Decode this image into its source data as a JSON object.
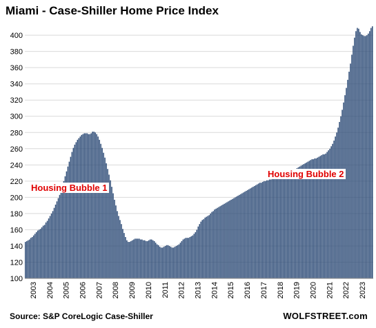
{
  "chart_data": {
    "type": "bar",
    "title": "Miami - Case-Shiller Home Price Index",
    "xlabel": "",
    "ylabel": "",
    "ylim": [
      100,
      412
    ],
    "yticks": [
      100,
      120,
      140,
      160,
      180,
      200,
      220,
      240,
      260,
      280,
      300,
      320,
      340,
      360,
      380,
      400
    ],
    "xtick_labels": [
      "2003",
      "2004",
      "2005",
      "2006",
      "2007",
      "2008",
      "2009",
      "2010",
      "2011",
      "2012",
      "2013",
      "2014",
      "2015",
      "2016",
      "2017",
      "2018",
      "2019",
      "2020",
      "2021",
      "2022",
      "2023"
    ],
    "grid": "horizontal",
    "bar_color": "#2e4c77",
    "annotation_color": "#e00000",
    "start": "2003-01",
    "frequency": "monthly",
    "annotations": [
      {
        "text": "Housing Bubble 1"
      },
      {
        "text": "Housing Bubble 2"
      }
    ],
    "values": [
      145,
      146,
      147,
      148,
      150,
      151,
      153,
      155,
      157,
      159,
      160,
      161,
      163,
      165,
      166,
      169,
      171,
      174,
      177,
      180,
      183,
      187,
      191,
      195,
      199,
      203,
      208,
      214,
      220,
      226,
      232,
      238,
      244,
      250,
      256,
      261,
      265,
      268,
      271,
      273,
      275,
      277,
      278,
      279,
      279,
      279,
      278,
      278,
      279,
      281,
      281,
      280,
      278,
      275,
      271,
      266,
      261,
      255,
      249,
      242,
      235,
      228,
      221,
      213,
      205,
      197,
      190,
      183,
      177,
      172,
      167,
      161,
      156,
      151,
      147,
      145,
      145,
      146,
      147,
      148,
      149,
      149,
      149,
      149,
      148,
      148,
      147,
      147,
      146,
      146,
      147,
      148,
      148,
      147,
      146,
      144,
      142,
      141,
      139,
      138,
      138,
      139,
      140,
      141,
      141,
      140,
      139,
      138,
      138,
      139,
      140,
      141,
      142,
      144,
      146,
      148,
      149,
      150,
      150,
      150,
      151,
      152,
      153,
      155,
      157,
      160,
      164,
      167,
      170,
      172,
      173,
      175,
      176,
      177,
      178,
      180,
      182,
      183,
      185,
      186,
      187,
      188,
      189,
      190,
      191,
      192,
      193,
      194,
      195,
      196,
      197,
      198,
      199,
      200,
      201,
      202,
      203,
      204,
      205,
      206,
      207,
      208,
      209,
      210,
      211,
      212,
      213,
      214,
      215,
      216,
      217,
      218,
      218,
      219,
      220,
      220,
      221,
      221,
      222,
      222,
      223,
      223,
      224,
      225,
      225,
      226,
      227,
      227,
      228,
      228,
      229,
      229,
      230,
      231,
      232,
      233,
      234,
      235,
      236,
      237,
      238,
      239,
      240,
      241,
      242,
      243,
      244,
      245,
      246,
      247,
      247,
      248,
      248,
      249,
      250,
      251,
      252,
      253,
      253,
      254,
      256,
      258,
      260,
      263,
      266,
      270,
      275,
      280,
      286,
      293,
      300,
      308,
      317,
      326,
      335,
      345,
      355,
      365,
      376,
      387,
      397,
      405,
      409,
      408,
      404,
      401,
      400,
      399,
      399,
      400,
      402,
      405,
      409,
      411
    ]
  },
  "source": "Source: S&P CoreLogic Case-Shiller",
  "brand": "WOLFSTREET.com"
}
